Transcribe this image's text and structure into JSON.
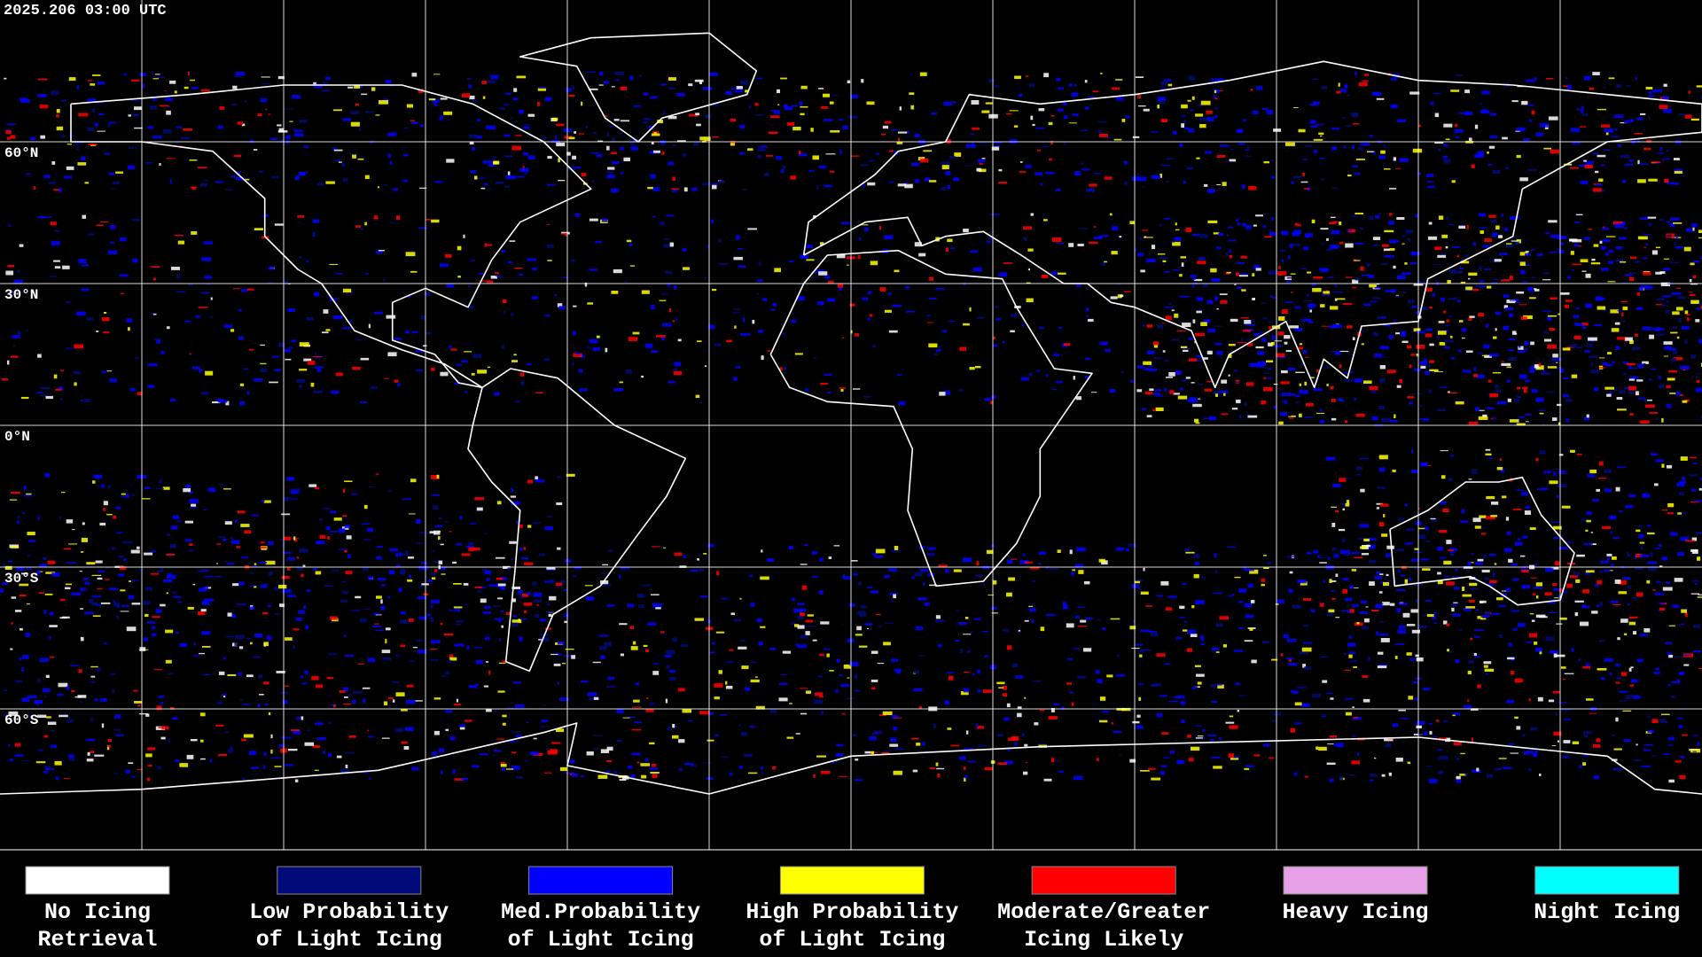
{
  "header": {
    "timestamp": "2025.206 03:00 UTC"
  },
  "map": {
    "latitude_labels": [
      "60°N",
      "30°N",
      "0°N",
      "30°S",
      "60°S"
    ]
  },
  "legend": {
    "items": [
      {
        "lines": [
          "No Icing",
          "Retrieval"
        ],
        "color": "#ffffff"
      },
      {
        "lines": [
          "Low Probability",
          "of Light Icing"
        ],
        "color": "#000a78"
      },
      {
        "lines": [
          "Med.Probability",
          "of Light Icing"
        ],
        "color": "#0000ff"
      },
      {
        "lines": [
          "High Probability",
          "of Light Icing"
        ],
        "color": "#ffff00"
      },
      {
        "lines": [
          "Moderate/Greater",
          "Icing Likely"
        ],
        "color": "#ff0000"
      },
      {
        "lines": [
          "Heavy Icing"
        ],
        "color": "#e6a0e6"
      },
      {
        "lines": [
          "Night Icing"
        ],
        "color": "#00ffff"
      }
    ]
  }
}
